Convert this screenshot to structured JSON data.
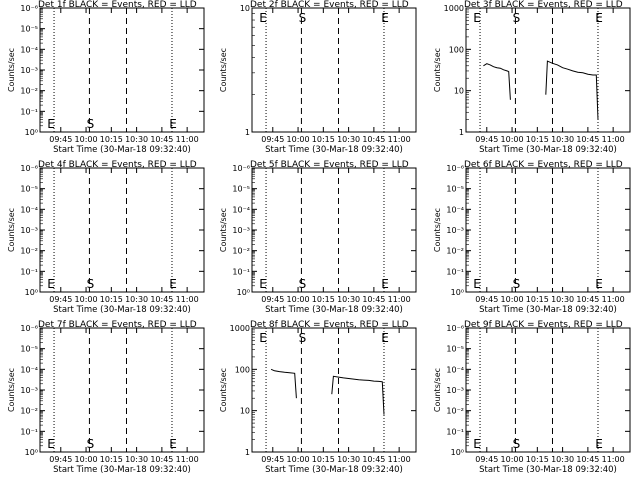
{
  "common": {
    "xlabel": "Start Time (30-Mar-18 09:32:40)",
    "xticks": [
      "09:45",
      "10:00",
      "10:15",
      "10:30",
      "10:45",
      "11:00"
    ],
    "ylabel": "Counts/sec",
    "time_start": "09:32:40",
    "time_end": "11:10",
    "marker_times": {
      "E1": "09:41",
      "S": "10:02",
      "mid": "10:24",
      "E2": "10:51"
    }
  },
  "chart_data": [
    {
      "type": "line",
      "title": "Det 1f BLACK = Events, RED = LLD",
      "yscale": "log",
      "yticks": [
        "10⁰",
        "10⁻¹",
        "10⁻²",
        "10⁻³",
        "10⁻⁴",
        "10⁻⁵",
        "10⁻⁶"
      ],
      "markers": [
        "E",
        "S",
        "E"
      ],
      "series": []
    },
    {
      "type": "line",
      "title": "Det 2f BLACK = Events, RED = LLD",
      "yscale": "log",
      "yticks": [
        "1",
        "10"
      ],
      "markers": [
        "E",
        "S",
        "E"
      ],
      "series": []
    },
    {
      "type": "line",
      "title": "Det 3f BLACK = Events, RED = LLD",
      "yscale": "log",
      "yticks": [
        "1",
        "10",
        "100",
        "1000"
      ],
      "markers": [
        "E",
        "S",
        "E"
      ],
      "series": [
        {
          "color": "#000000",
          "x": [
            "09:43",
            "09:45",
            "09:47",
            "09:49",
            "09:51",
            "09:53",
            "09:55",
            "09:57",
            "09:58",
            "09:59"
          ],
          "y": [
            40,
            45,
            42,
            38,
            36,
            35,
            32,
            30,
            29,
            6
          ]
        },
        {
          "color": "#000000",
          "x": [
            "10:20",
            "10:21",
            "10:24",
            "10:27",
            "10:30",
            "10:33",
            "10:36",
            "10:39",
            "10:42",
            "10:45",
            "10:48",
            "10:50",
            "10:51"
          ],
          "y": [
            8,
            52,
            46,
            42,
            36,
            33,
            30,
            28,
            27,
            25,
            24,
            24,
            2
          ]
        }
      ]
    },
    {
      "type": "line",
      "title": "Det 4f BLACK = Events, RED = LLD",
      "yscale": "log",
      "yticks": [
        "10⁰",
        "10⁻¹",
        "10⁻²",
        "10⁻³",
        "10⁻⁴",
        "10⁻⁵",
        "10⁻⁶"
      ],
      "markers": [
        "E",
        "S",
        "E"
      ],
      "series": []
    },
    {
      "type": "line",
      "title": "Det 5f BLACK = Events, RED = LLD",
      "yscale": "log",
      "yticks": [
        "10⁰",
        "10⁻¹",
        "10⁻²",
        "10⁻³",
        "10⁻⁴",
        "10⁻⁵",
        "10⁻⁶"
      ],
      "markers": [
        "E",
        "S",
        "E"
      ],
      "series": []
    },
    {
      "type": "line",
      "title": "Det 6f BLACK = Events, RED = LLD",
      "yscale": "log",
      "yticks": [
        "10⁰",
        "10⁻¹",
        "10⁻²",
        "10⁻³",
        "10⁻⁴",
        "10⁻⁵",
        "10⁻⁶"
      ],
      "markers": [
        "E",
        "S",
        "E"
      ],
      "series": []
    },
    {
      "type": "line",
      "title": "Det 7f BLACK = Events, RED = LLD",
      "yscale": "log",
      "yticks": [
        "10⁰",
        "10⁻¹",
        "10⁻²",
        "10⁻³",
        "10⁻⁴",
        "10⁻⁵",
        "10⁻⁶"
      ],
      "markers": [
        "E",
        "S",
        "E"
      ],
      "series": []
    },
    {
      "type": "line",
      "title": "Det 8f BLACK = Events, RED = LLD",
      "yscale": "log",
      "yticks": [
        "1",
        "10",
        "100",
        "1000"
      ],
      "markers": [
        "E",
        "S",
        "E"
      ],
      "series": [
        {
          "color": "#000000",
          "x": [
            "09:44",
            "09:46",
            "09:49",
            "09:52",
            "09:55",
            "09:58",
            "09:59"
          ],
          "y": [
            100,
            92,
            88,
            85,
            83,
            80,
            20
          ]
        },
        {
          "color": "#000000",
          "x": [
            "10:20",
            "10:21",
            "10:24",
            "10:27",
            "10:30",
            "10:33",
            "10:36",
            "10:39",
            "10:42",
            "10:45",
            "10:48",
            "10:50",
            "10:51"
          ],
          "y": [
            25,
            68,
            65,
            62,
            60,
            58,
            56,
            55,
            54,
            52,
            51,
            50,
            8
          ]
        }
      ]
    },
    {
      "type": "line",
      "title": "Det 9f BLACK = Events, RED = LLD",
      "yscale": "log",
      "yticks": [
        "10⁰",
        "10⁻¹",
        "10⁻²",
        "10⁻³",
        "10⁻⁴",
        "10⁻⁵",
        "10⁻⁶"
      ],
      "markers": [
        "E",
        "S",
        "E"
      ],
      "series": []
    }
  ]
}
